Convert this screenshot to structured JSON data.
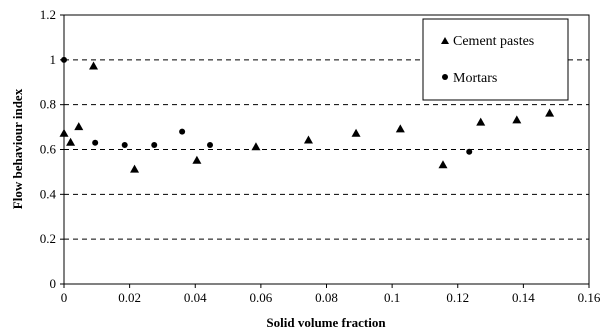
{
  "chart_data": {
    "type": "scatter",
    "xlabel": "Solid volume fraction",
    "ylabel": "Flow behaviour index",
    "xlim": [
      0,
      0.16
    ],
    "ylim": [
      0,
      1.2
    ],
    "x_ticks": [
      "0",
      "0.02",
      "0.04",
      "0.06",
      "0.08",
      "0.1",
      "0.12",
      "0.14",
      "0.16"
    ],
    "y_ticks": [
      "0",
      "0.2",
      "0.4",
      "0.6",
      "0.8",
      "1",
      "1.2"
    ],
    "grid": "horizontal dashed",
    "legend_position": "top-right",
    "series": [
      {
        "name": "Cement pastes",
        "marker": "triangle",
        "color": "#000000",
        "points": [
          [
            0.0,
            0.67
          ],
          [
            0.002,
            0.63
          ],
          [
            0.0045,
            0.7
          ],
          [
            0.009,
            0.97
          ],
          [
            0.0215,
            0.51
          ],
          [
            0.0405,
            0.55
          ],
          [
            0.0585,
            0.61
          ],
          [
            0.0745,
            0.64
          ],
          [
            0.089,
            0.67
          ],
          [
            0.1025,
            0.69
          ],
          [
            0.1155,
            0.53
          ],
          [
            0.127,
            0.72
          ],
          [
            0.138,
            0.73
          ],
          [
            0.148,
            0.76
          ]
        ]
      },
      {
        "name": "Mortars",
        "marker": "circle",
        "color": "#000000",
        "points": [
          [
            0.0,
            1.0
          ],
          [
            0.0095,
            0.63
          ],
          [
            0.0185,
            0.62
          ],
          [
            0.0275,
            0.62
          ],
          [
            0.036,
            0.68
          ],
          [
            0.0445,
            0.62
          ],
          [
            0.1235,
            0.59
          ]
        ]
      }
    ]
  }
}
